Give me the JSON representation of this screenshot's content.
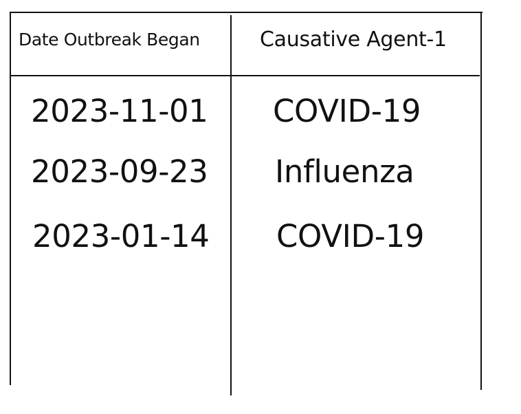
{
  "table": {
    "headers": {
      "date": "Date Outbreak Began",
      "agent": "Causative Agent-1"
    },
    "rows": [
      {
        "date": "2023-11-01",
        "agent": "COVID-19"
      },
      {
        "date": "2023-09-23",
        "agent": "Influenza"
      },
      {
        "date": "2023-01-14",
        "agent": "COVID-19"
      }
    ]
  }
}
